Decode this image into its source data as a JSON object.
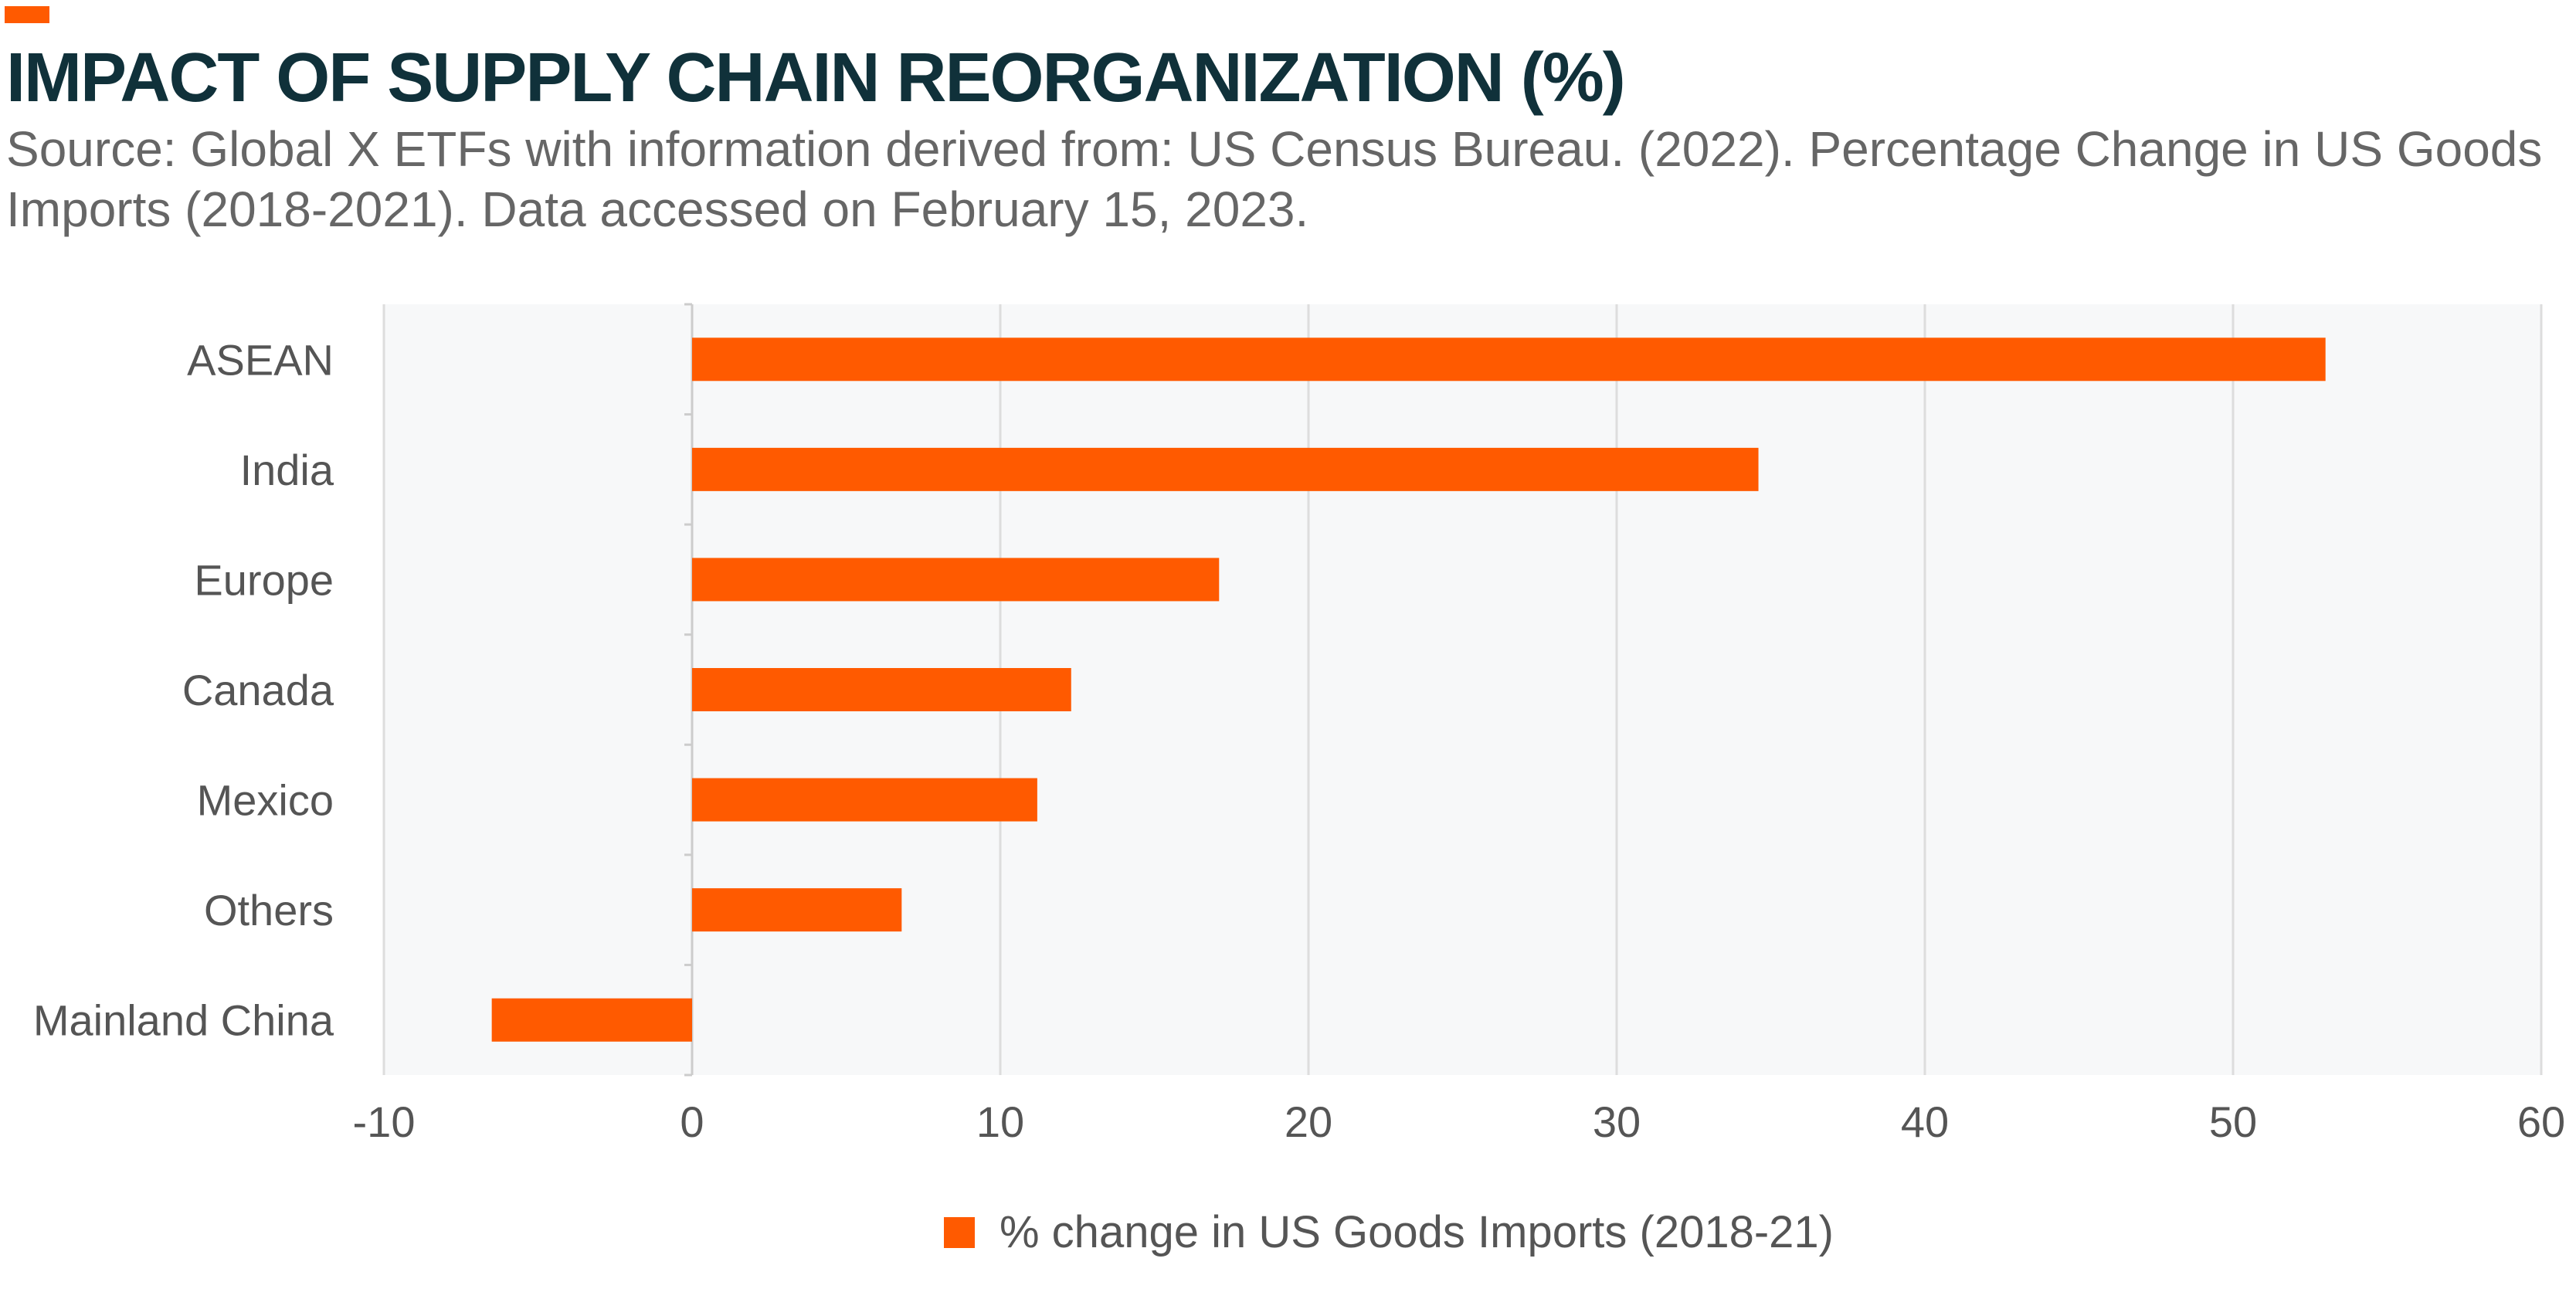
{
  "header": {
    "title": "IMPACT OF SUPPLY CHAIN REORGANIZATION (%)",
    "source": "Source: Global X ETFs with information derived from: US Census Bureau. (2022). Percentage Change in US Goods Imports (2018-2021). Data accessed on February 15, 2023."
  },
  "colors": {
    "accent": "#ff5a00",
    "bar": "#ff5a00",
    "plot_background": "#f7f8f9",
    "gridline": "#dddddd",
    "title": "#10313a",
    "text": "#555555"
  },
  "chart_data": {
    "type": "bar",
    "orientation": "horizontal",
    "categories": [
      "ASEAN",
      "India",
      "Europe",
      "Canada",
      "Mexico",
      "Others",
      "Mainland China"
    ],
    "series": [
      {
        "name": "% change in US Goods Imports (2018-21)",
        "values": [
          53.0,
          34.6,
          17.1,
          12.3,
          11.2,
          6.8,
          -6.5
        ]
      }
    ],
    "xlim": [
      -10,
      60
    ],
    "xticks": [
      "-10",
      "0",
      "10",
      "20",
      "30",
      "40",
      "50",
      "60"
    ],
    "grid": true,
    "legend_position": "bottom"
  }
}
